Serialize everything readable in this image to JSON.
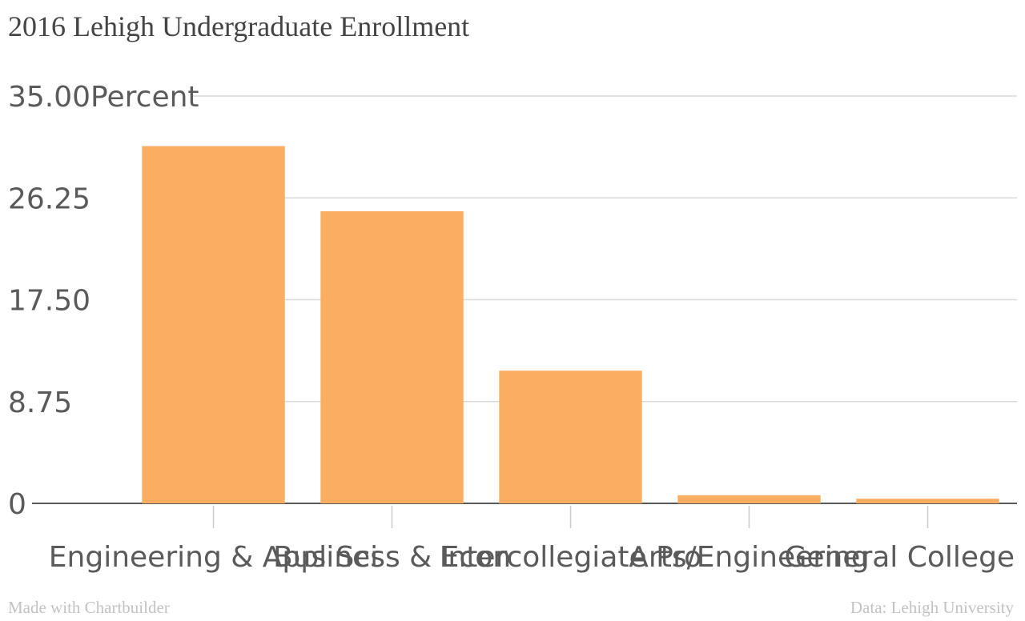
{
  "chart_data": {
    "type": "bar",
    "title": "2016 Lehigh Undergraduate Enrollment",
    "categories": [
      "Engineering & Appl Sci",
      "Business & Econ",
      "Intercollegiate Pro",
      "Arts/Engineering",
      "General College Div"
    ],
    "values": [
      30.7,
      25.1,
      11.4,
      0.7,
      0.4
    ],
    "ylim": [
      0,
      35
    ],
    "yticks": [
      "0",
      "8.75",
      "17.50",
      "26.25",
      "35.00"
    ],
    "yunit": "Percent",
    "xlabel": "",
    "ylabel": "",
    "grid": true,
    "bar_color": "#fbad62"
  },
  "footer": {
    "credit": "Made with Chartbuilder",
    "source": "Data: Lehigh University"
  }
}
